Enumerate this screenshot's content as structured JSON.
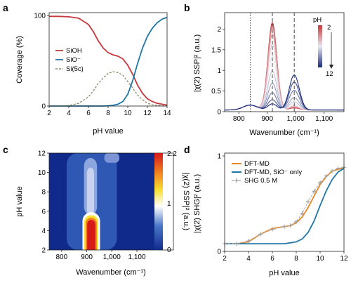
{
  "colors": {
    "SiOH": "#c8383c",
    "SiO": "#1f77a8",
    "Si5c": "#8a8a6a",
    "DFT_MD": "#e8892a",
    "DFT_MD_SiO": "#1f77a8",
    "SHG": "#b0b0b0",
    "ph_low": "#c8383c",
    "ph_high": "#1b2a7a"
  },
  "chart_data": [
    {
      "panel": "a",
      "type": "line",
      "xlabel": "pH value",
      "ylabel": "Coverage (%)",
      "xlim": [
        2,
        14
      ],
      "ylim": [
        0,
        100
      ],
      "xticks": [
        2,
        4,
        6,
        8,
        10,
        12,
        14
      ],
      "yticks": [
        0,
        100
      ],
      "legend": "left",
      "x": [
        2,
        3,
        4,
        5,
        6,
        6.5,
        7,
        7.5,
        8,
        8.5,
        9,
        9.5,
        10,
        10.5,
        11,
        11.5,
        12,
        12.5,
        13,
        13.5,
        14
      ],
      "series": [
        {
          "name": "SiOH",
          "style": "solid",
          "values": [
            99,
            99,
            98.5,
            97,
            90,
            82,
            72,
            64,
            59,
            56.5,
            55,
            52,
            45,
            35,
            23,
            14,
            8,
            5,
            3,
            2,
            1
          ]
        },
        {
          "name": "SiO⁻",
          "style": "solid",
          "values": [
            0,
            0,
            0,
            0,
            0,
            0,
            0,
            0,
            0.3,
            0.8,
            2,
            5,
            13,
            28,
            47,
            64,
            77,
            86,
            92,
            96,
            98
          ]
        },
        {
          "name": "Si(5c)",
          "style": "dashed",
          "values": [
            0,
            0,
            0.5,
            3,
            10,
            17,
            25,
            31,
            36,
            38,
            37,
            34,
            27,
            20,
            12,
            7,
            3,
            1.5,
            0.6,
            0.2,
            0
          ]
        }
      ]
    },
    {
      "panel": "b",
      "type": "line",
      "xlabel": "Wavenumber (cm⁻¹)",
      "ylabel": "|χ(2) SSP|² (a.u.)",
      "xlim": [
        750,
        1170
      ],
      "ylim": [
        0,
        2.4
      ],
      "xticks": [
        "800",
        "900",
        "1,000",
        "1,100"
      ],
      "yticks": [
        0,
        0.5,
        1,
        1.5,
        2
      ],
      "colorbar_title": "pH",
      "colorbar_labels": [
        "2",
        "12"
      ],
      "vlines": [
        {
          "x": 840,
          "style": "dotted"
        },
        {
          "x": 918,
          "style": "dashed"
        },
        {
          "x": 995,
          "style": "dashed"
        }
      ],
      "model": "per pH: peak at 918 (width 22) + peak at 995 (width 25) + baseline",
      "series": [
        {
          "pH": 2,
          "amp918": 2.12,
          "amp995": 0.05
        },
        {
          "pH": 3,
          "amp918": 2.08,
          "amp995": 0.06
        },
        {
          "pH": 4,
          "amp918": 2.0,
          "amp995": 0.07
        },
        {
          "pH": 5,
          "amp918": 1.85,
          "amp995": 0.08
        },
        {
          "pH": 6,
          "amp918": 1.6,
          "amp995": 0.1
        },
        {
          "pH": 7,
          "amp918": 1.3,
          "amp995": 0.14
        },
        {
          "pH": 8,
          "amp918": 0.95,
          "amp995": 0.2
        },
        {
          "pH": 9,
          "amp918": 0.65,
          "amp995": 0.3
        },
        {
          "pH": 10,
          "amp918": 0.42,
          "amp995": 0.48
        },
        {
          "pH": 11,
          "amp918": 0.25,
          "amp995": 0.68
        },
        {
          "pH": 12,
          "amp918": 0.15,
          "amp995": 0.85
        }
      ]
    },
    {
      "panel": "c",
      "type": "heatmap",
      "xlabel": "Wavenumber (cm⁻¹)",
      "ylabel": "pH value",
      "xlim": [
        750,
        1170
      ],
      "ylim": [
        2,
        12
      ],
      "xticks": [
        "800",
        "900",
        "1,000",
        "1,100"
      ],
      "yticks": [
        2,
        4,
        6,
        8,
        10,
        12
      ],
      "colorbar_title": "|χ(2) SSP|² (a.u.)",
      "colorbar_ticks": [
        "0",
        "1",
        "2.2"
      ],
      "zlim": [
        0,
        2.2
      ],
      "blobs": [
        {
          "x": 918,
          "y_min": 2,
          "y_max": 5.6,
          "width": 28,
          "value": 2.2
        },
        {
          "x": 915,
          "y_min": 5.6,
          "y_max": 11.5,
          "width": 26,
          "value": 0.55
        },
        {
          "x": 1000,
          "y_min": 11,
          "y_max": 12,
          "width": 30,
          "value": 0.35
        }
      ]
    },
    {
      "panel": "d",
      "type": "line",
      "xlabel": "pH value",
      "ylabel": "|χ(2) SHG|² (a.u.)",
      "xlim": [
        2,
        12
      ],
      "ylim": [
        0,
        1
      ],
      "xticks": [
        2,
        4,
        6,
        8,
        10,
        12
      ],
      "yticks": [
        0,
        1
      ],
      "legend": "top-left",
      "x": [
        2,
        3,
        4,
        5,
        6,
        7,
        7.5,
        8,
        8.5,
        9,
        9.5,
        10,
        10.5,
        11,
        11.5,
        12
      ],
      "series": [
        {
          "name": "DFT-MD",
          "style": "solid",
          "values": [
            0.08,
            0.08,
            0.1,
            0.18,
            0.24,
            0.26,
            0.27,
            0.3,
            0.36,
            0.46,
            0.58,
            0.7,
            0.78,
            0.84,
            0.86,
            0.87
          ]
        },
        {
          "name": "DFT-MD, SiO⁻ only",
          "style": "solid",
          "values": [
            0.08,
            0.08,
            0.08,
            0.08,
            0.08,
            0.08,
            0.09,
            0.1,
            0.13,
            0.2,
            0.32,
            0.48,
            0.63,
            0.75,
            0.83,
            0.87
          ]
        },
        {
          "name": "SHG 0.5 M",
          "style": "dashed-markers",
          "values": [
            0.08,
            0.08,
            0.11,
            0.18,
            0.23,
            0.26,
            0.27,
            0.31,
            0.4,
            0.52,
            0.63,
            0.72,
            0.79,
            0.84,
            0.87,
            0.88
          ]
        }
      ]
    }
  ]
}
